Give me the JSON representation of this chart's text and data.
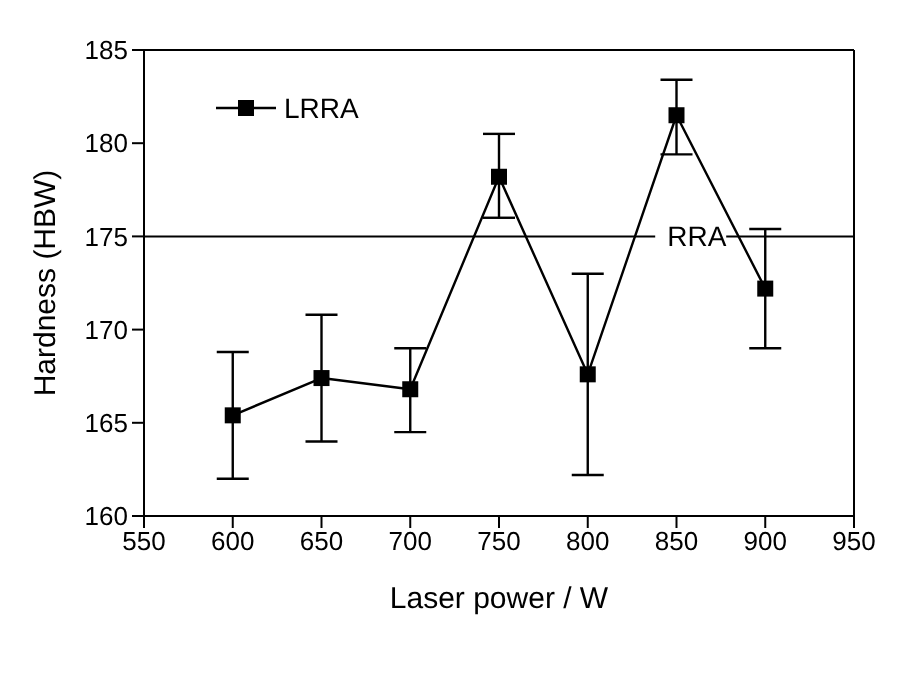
{
  "chart_data": {
    "type": "line",
    "xlabel": "Laser power / W",
    "ylabel": "Hardness (HBW)",
    "x": [
      600,
      650,
      700,
      750,
      800,
      850,
      900
    ],
    "series": [
      {
        "name": "LRRA",
        "color": "#000000",
        "values": [
          165.4,
          167.4,
          166.8,
          178.2,
          167.6,
          181.5,
          172.2
        ],
        "errors": [
          [
            162.0,
            168.8
          ],
          [
            164.0,
            170.8
          ],
          [
            164.5,
            169.0
          ],
          [
            176.0,
            180.5
          ],
          [
            162.2,
            173.0
          ],
          [
            179.4,
            183.4
          ],
          [
            169.0,
            175.4
          ]
        ]
      }
    ],
    "xlim": [
      550,
      950
    ],
    "xticks": [
      550,
      600,
      650,
      700,
      750,
      800,
      850,
      900,
      950
    ],
    "ylim": [
      160,
      185
    ],
    "yticks": [
      160,
      165,
      170,
      175,
      180,
      185
    ],
    "ref_lines": [
      {
        "axis": "y",
        "value": 175,
        "label": "RRA",
        "color": "#000000"
      }
    ],
    "grid": false,
    "legend": "top left",
    "marker": "square",
    "line_style": "solid"
  }
}
